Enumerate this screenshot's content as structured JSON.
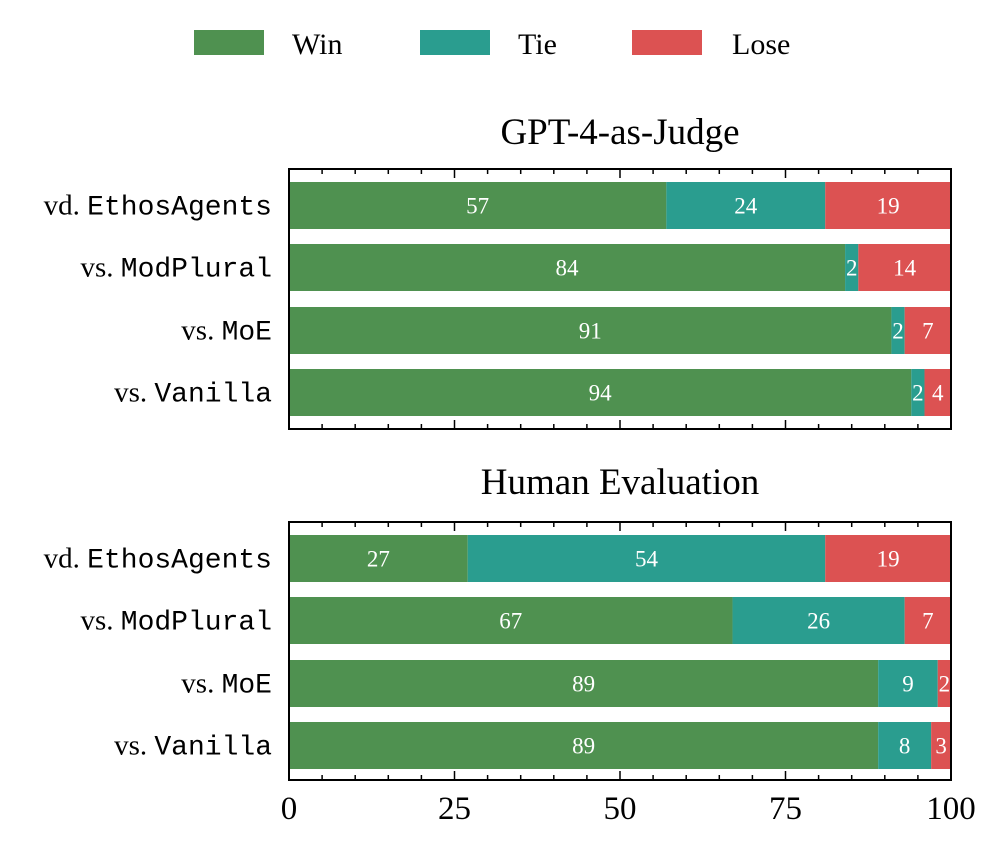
{
  "legend": [
    {
      "key": "win",
      "label": "Win",
      "color": "#4f9150"
    },
    {
      "key": "tie",
      "label": "Tie",
      "color": "#2a9d8f"
    },
    {
      "key": "lose",
      "label": "Lose",
      "color": "#dc5252"
    }
  ],
  "chart_data": [
    {
      "type": "bar",
      "orientation": "horizontal",
      "stacked": true,
      "title": "GPT-4-as-Judge",
      "categories": [
        {
          "prefix": "vd.",
          "name": "EthosAgents"
        },
        {
          "prefix": "vs.",
          "name": "ModPlural"
        },
        {
          "prefix": "vs.",
          "name": "MoE"
        },
        {
          "prefix": "vs.",
          "name": "Vanilla"
        }
      ],
      "series": [
        {
          "name": "Win",
          "values": [
            57,
            84,
            91,
            94
          ]
        },
        {
          "name": "Tie",
          "values": [
            24,
            2,
            2,
            2
          ]
        },
        {
          "name": "Lose",
          "values": [
            19,
            14,
            7,
            4
          ]
        }
      ],
      "xlim": [
        0,
        100
      ]
    },
    {
      "type": "bar",
      "orientation": "horizontal",
      "stacked": true,
      "title": "Human Evaluation",
      "categories": [
        {
          "prefix": "vd.",
          "name": "EthosAgents"
        },
        {
          "prefix": "vs.",
          "name": "ModPlural"
        },
        {
          "prefix": "vs.",
          "name": "MoE"
        },
        {
          "prefix": "vs.",
          "name": "Vanilla"
        }
      ],
      "series": [
        {
          "name": "Win",
          "values": [
            27,
            67,
            89,
            89
          ]
        },
        {
          "name": "Tie",
          "values": [
            54,
            26,
            9,
            8
          ]
        },
        {
          "name": "Lose",
          "values": [
            19,
            7,
            2,
            3
          ]
        }
      ],
      "xlim": [
        0,
        100
      ],
      "xticks": [
        "0",
        "25",
        "50",
        "75",
        "100"
      ]
    }
  ]
}
